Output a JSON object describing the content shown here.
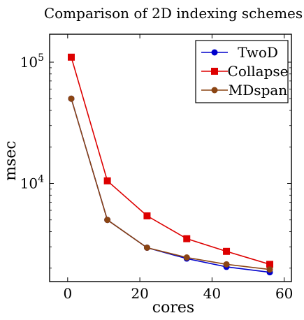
{
  "chart_data": {
    "type": "line",
    "title": "Comparison of 2D indexing schemes",
    "xlabel": "cores",
    "ylabel": "msec",
    "xlim": [
      -5,
      62
    ],
    "ylim": [
      1550,
      170000
    ],
    "y_scale": "log",
    "x_ticks": [
      0,
      20,
      40,
      60
    ],
    "x_tick_labels": [
      "0",
      "20",
      "40",
      "60"
    ],
    "y_major_ticks": [
      10000,
      100000
    ],
    "y_tick_labels": [
      {
        "base": "10",
        "exp": "4"
      },
      {
        "base": "10",
        "exp": "5"
      }
    ],
    "grid": false,
    "legend_position": "top-right",
    "x": [
      1,
      11,
      22,
      33,
      44,
      56
    ],
    "series": [
      {
        "name": "TwoD",
        "color": "#0000cc",
        "marker": "circle",
        "values": [
          50000,
          5000,
          2950,
          2400,
          2050,
          1850
        ]
      },
      {
        "name": "Collapse",
        "color": "#dd0000",
        "marker": "square",
        "values": [
          110000,
          10500,
          5400,
          3500,
          2750,
          2150
        ]
      },
      {
        "name": "MDspan",
        "color": "#8b4513",
        "marker": "circle",
        "values": [
          50000,
          5000,
          2950,
          2450,
          2150,
          1950
        ]
      }
    ]
  }
}
